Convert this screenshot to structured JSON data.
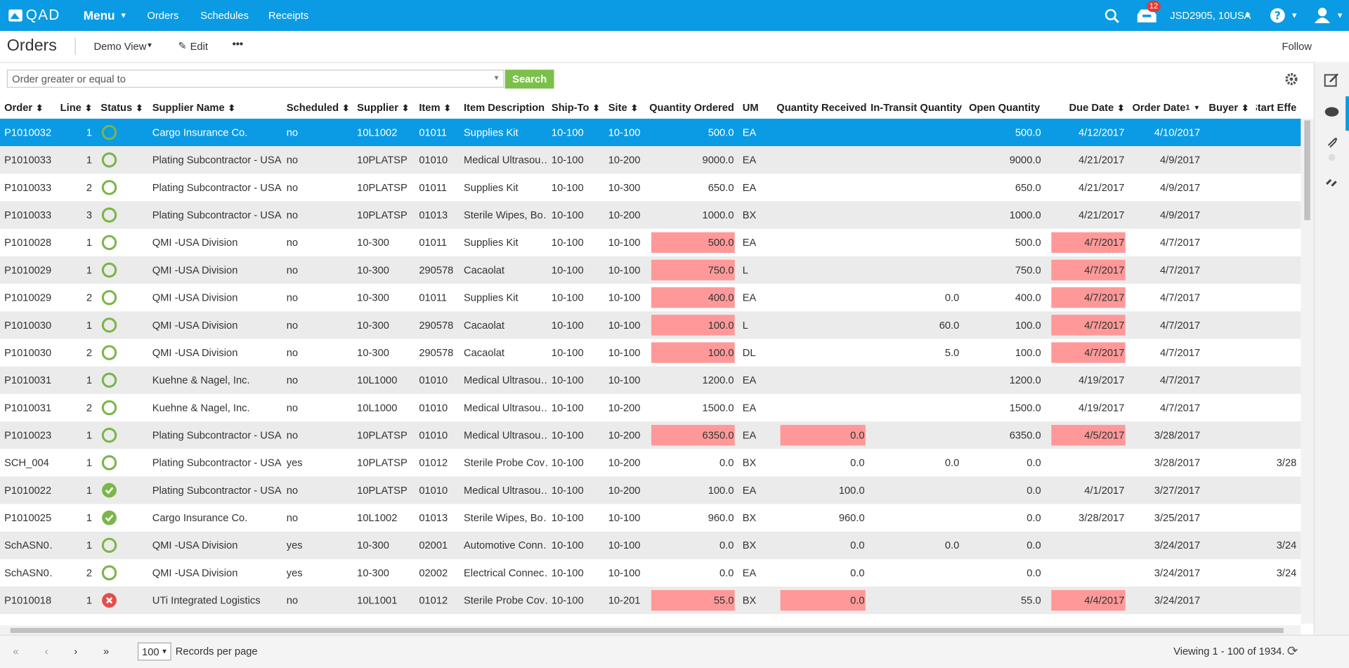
{
  "topbar": {
    "logo": "QAD",
    "menu": "Menu",
    "nav": [
      "Orders",
      "Schedules",
      "Receipts"
    ],
    "badge": "12",
    "user": "JSD2905, 10USA"
  },
  "header": {
    "title": "Orders",
    "view": "Demo View",
    "edit": "Edit",
    "follow": "Follow"
  },
  "filter": {
    "placeholder": "Order greater or equal to",
    "button": "Search"
  },
  "table": {
    "columns": [
      {
        "label": "Order",
        "sortable": true
      },
      {
        "label": "Line",
        "sortable": true
      },
      {
        "label": "Status",
        "sortable": true
      },
      {
        "label": "Supplier Name",
        "sortable": true
      },
      {
        "label": "Scheduled",
        "sortable": true
      },
      {
        "label": "Supplier",
        "sortable": true
      },
      {
        "label": "Item",
        "sortable": true
      },
      {
        "label": "Item Description",
        "sortable": false
      },
      {
        "label": "Ship-To",
        "sortable": true
      },
      {
        "label": "Site",
        "sortable": true
      },
      {
        "label": "Quantity Ordered",
        "sortable": false
      },
      {
        "label": "UM",
        "sortable": false
      },
      {
        "label": "Quantity Received",
        "sortable": false
      },
      {
        "label": "In-Transit Quantity",
        "sortable": false
      },
      {
        "label": "Open Quantity",
        "sortable": false
      },
      {
        "label": "Due Date",
        "sortable": true
      },
      {
        "label": "Order Date",
        "sortable": true,
        "sort": "1"
      },
      {
        "label": "Buyer",
        "sortable": true
      },
      {
        "label": "Start Effe",
        "sortable": false
      }
    ],
    "rows": [
      {
        "status": "open",
        "selected": true,
        "highlight": [],
        "cells": [
          "P1010032",
          "1",
          null,
          "Cargo Insurance Co.",
          "no",
          "10L1002",
          "01011",
          "Supplies Kit",
          "10-100",
          "10-100",
          "500.0",
          "EA",
          null,
          null,
          "500.0",
          "4/12/2017",
          "4/10/2017",
          null,
          null
        ]
      },
      {
        "status": "open",
        "highlight": [],
        "cells": [
          "P1010033",
          "1",
          null,
          "Plating Subcontractor - USA",
          "no",
          "10PLATSP",
          "01010",
          "Medical Ultrasou…",
          "10-100",
          "10-200",
          "9000.0",
          "EA",
          null,
          null,
          "9000.0",
          "4/21/2017",
          "4/9/2017",
          null,
          null
        ]
      },
      {
        "status": "open",
        "highlight": [],
        "cells": [
          "P1010033",
          "2",
          null,
          "Plating Subcontractor - USA",
          "no",
          "10PLATSP",
          "01011",
          "Supplies Kit",
          "10-100",
          "10-300",
          "650.0",
          "EA",
          null,
          null,
          "650.0",
          "4/21/2017",
          "4/9/2017",
          null,
          null
        ]
      },
      {
        "status": "open",
        "highlight": [],
        "cells": [
          "P1010033",
          "3",
          null,
          "Plating Subcontractor - USA",
          "no",
          "10PLATSP",
          "01013",
          "Sterile Wipes, Bo…",
          "10-100",
          "10-200",
          "1000.0",
          "BX",
          null,
          null,
          "1000.0",
          "4/21/2017",
          "4/9/2017",
          null,
          null
        ]
      },
      {
        "status": "open",
        "highlight": [
          10,
          15
        ],
        "cells": [
          "P1010028",
          "1",
          null,
          "QMI -USA Division",
          "no",
          "10-300",
          "01011",
          "Supplies Kit",
          "10-100",
          "10-100",
          "500.0",
          "EA",
          null,
          null,
          "500.0",
          "4/7/2017",
          "4/7/2017",
          null,
          null
        ]
      },
      {
        "status": "open",
        "highlight": [
          10,
          15
        ],
        "cells": [
          "P1010029",
          "1",
          null,
          "QMI -USA Division",
          "no",
          "10-300",
          "290578",
          "Cacaolat",
          "10-100",
          "10-100",
          "750.0",
          "L",
          null,
          null,
          "750.0",
          "4/7/2017",
          "4/7/2017",
          null,
          null
        ]
      },
      {
        "status": "open",
        "highlight": [
          10,
          15
        ],
        "cells": [
          "P1010029",
          "2",
          null,
          "QMI -USA Division",
          "no",
          "10-300",
          "01011",
          "Supplies Kit",
          "10-100",
          "10-100",
          "400.0",
          "EA",
          null,
          "0.0",
          "400.0",
          "4/7/2017",
          "4/7/2017",
          null,
          null
        ]
      },
      {
        "status": "open",
        "highlight": [
          10,
          15
        ],
        "cells": [
          "P1010030",
          "1",
          null,
          "QMI -USA Division",
          "no",
          "10-300",
          "290578",
          "Cacaolat",
          "10-100",
          "10-100",
          "100.0",
          "L",
          null,
          "60.0",
          "100.0",
          "4/7/2017",
          "4/7/2017",
          null,
          null
        ]
      },
      {
        "status": "open",
        "highlight": [
          10,
          15
        ],
        "cells": [
          "P1010030",
          "2",
          null,
          "QMI -USA Division",
          "no",
          "10-300",
          "290578",
          "Cacaolat",
          "10-100",
          "10-100",
          "100.0",
          "DL",
          null,
          "5.0",
          "100.0",
          "4/7/2017",
          "4/7/2017",
          null,
          null
        ]
      },
      {
        "status": "open",
        "highlight": [],
        "cells": [
          "P1010031",
          "1",
          null,
          "Kuehne & Nagel, Inc.",
          "no",
          "10L1000",
          "01010",
          "Medical Ultrasou…",
          "10-100",
          "10-100",
          "1200.0",
          "EA",
          null,
          null,
          "1200.0",
          "4/19/2017",
          "4/7/2017",
          null,
          null
        ]
      },
      {
        "status": "open",
        "highlight": [],
        "cells": [
          "P1010031",
          "2",
          null,
          "Kuehne & Nagel, Inc.",
          "no",
          "10L1000",
          "01010",
          "Medical Ultrasou…",
          "10-100",
          "10-200",
          "1500.0",
          "EA",
          null,
          null,
          "1500.0",
          "4/19/2017",
          "4/7/2017",
          null,
          null
        ]
      },
      {
        "status": "open",
        "highlight": [
          10,
          12,
          15
        ],
        "cells": [
          "P1010023",
          "1",
          null,
          "Plating Subcontractor - USA",
          "no",
          "10PLATSP",
          "01010",
          "Medical Ultrasou…",
          "10-100",
          "10-200",
          "6350.0",
          "EA",
          "0.0",
          null,
          "6350.0",
          "4/5/2017",
          "3/28/2017",
          null,
          null
        ]
      },
      {
        "status": "open",
        "highlight": [],
        "cells": [
          "SCH_004",
          "1",
          null,
          "Plating Subcontractor - USA",
          "yes",
          "10PLATSP",
          "01012",
          "Sterile Probe Cov…",
          "10-100",
          "10-200",
          "0.0",
          "BX",
          "0.0",
          "0.0",
          "0.0",
          null,
          "3/28/2017",
          null,
          "3/28"
        ]
      },
      {
        "status": "complete",
        "highlight": [],
        "cells": [
          "P1010022",
          "1",
          null,
          "Plating Subcontractor - USA",
          "no",
          "10PLATSP",
          "01010",
          "Medical Ultrasou…",
          "10-100",
          "10-200",
          "100.0",
          "EA",
          "100.0",
          null,
          "0.0",
          "4/1/2017",
          "3/27/2017",
          null,
          null
        ]
      },
      {
        "status": "complete",
        "highlight": [],
        "cells": [
          "P1010025",
          "1",
          null,
          "Cargo Insurance Co.",
          "no",
          "10L1002",
          "01013",
          "Sterile Wipes, Bo…",
          "10-100",
          "10-100",
          "960.0",
          "BX",
          "960.0",
          null,
          "0.0",
          "3/28/2017",
          "3/25/2017",
          null,
          null
        ]
      },
      {
        "status": "open",
        "highlight": [],
        "cells": [
          "SchASN0…",
          "1",
          null,
          "QMI -USA Division",
          "yes",
          "10-300",
          "02001",
          "Automotive Conn…",
          "10-100",
          "10-100",
          "0.0",
          "BX",
          "0.0",
          "0.0",
          "0.0",
          null,
          "3/24/2017",
          null,
          "3/24"
        ]
      },
      {
        "status": "open",
        "highlight": [],
        "cells": [
          "SchASN0…",
          "2",
          null,
          "QMI -USA Division",
          "yes",
          "10-300",
          "02002",
          "Electrical Connec…",
          "10-100",
          "10-100",
          "0.0",
          "EA",
          "0.0",
          null,
          "0.0",
          null,
          "3/24/2017",
          null,
          "3/24"
        ]
      },
      {
        "status": "error",
        "highlight": [
          10,
          12,
          15
        ],
        "cells": [
          "P1010018",
          "1",
          null,
          "UTi Integrated Logistics",
          "no",
          "10L1001",
          "01012",
          "Sterile Probe Cov…",
          "10-100",
          "10-201",
          "55.0",
          "BX",
          "0.0",
          null,
          "55.0",
          "4/4/2017",
          "3/24/2017",
          null,
          null
        ]
      }
    ]
  },
  "footer": {
    "page_size": "100",
    "per_page": "Records per page",
    "viewing": "Viewing 1 - 100 of 1934."
  }
}
